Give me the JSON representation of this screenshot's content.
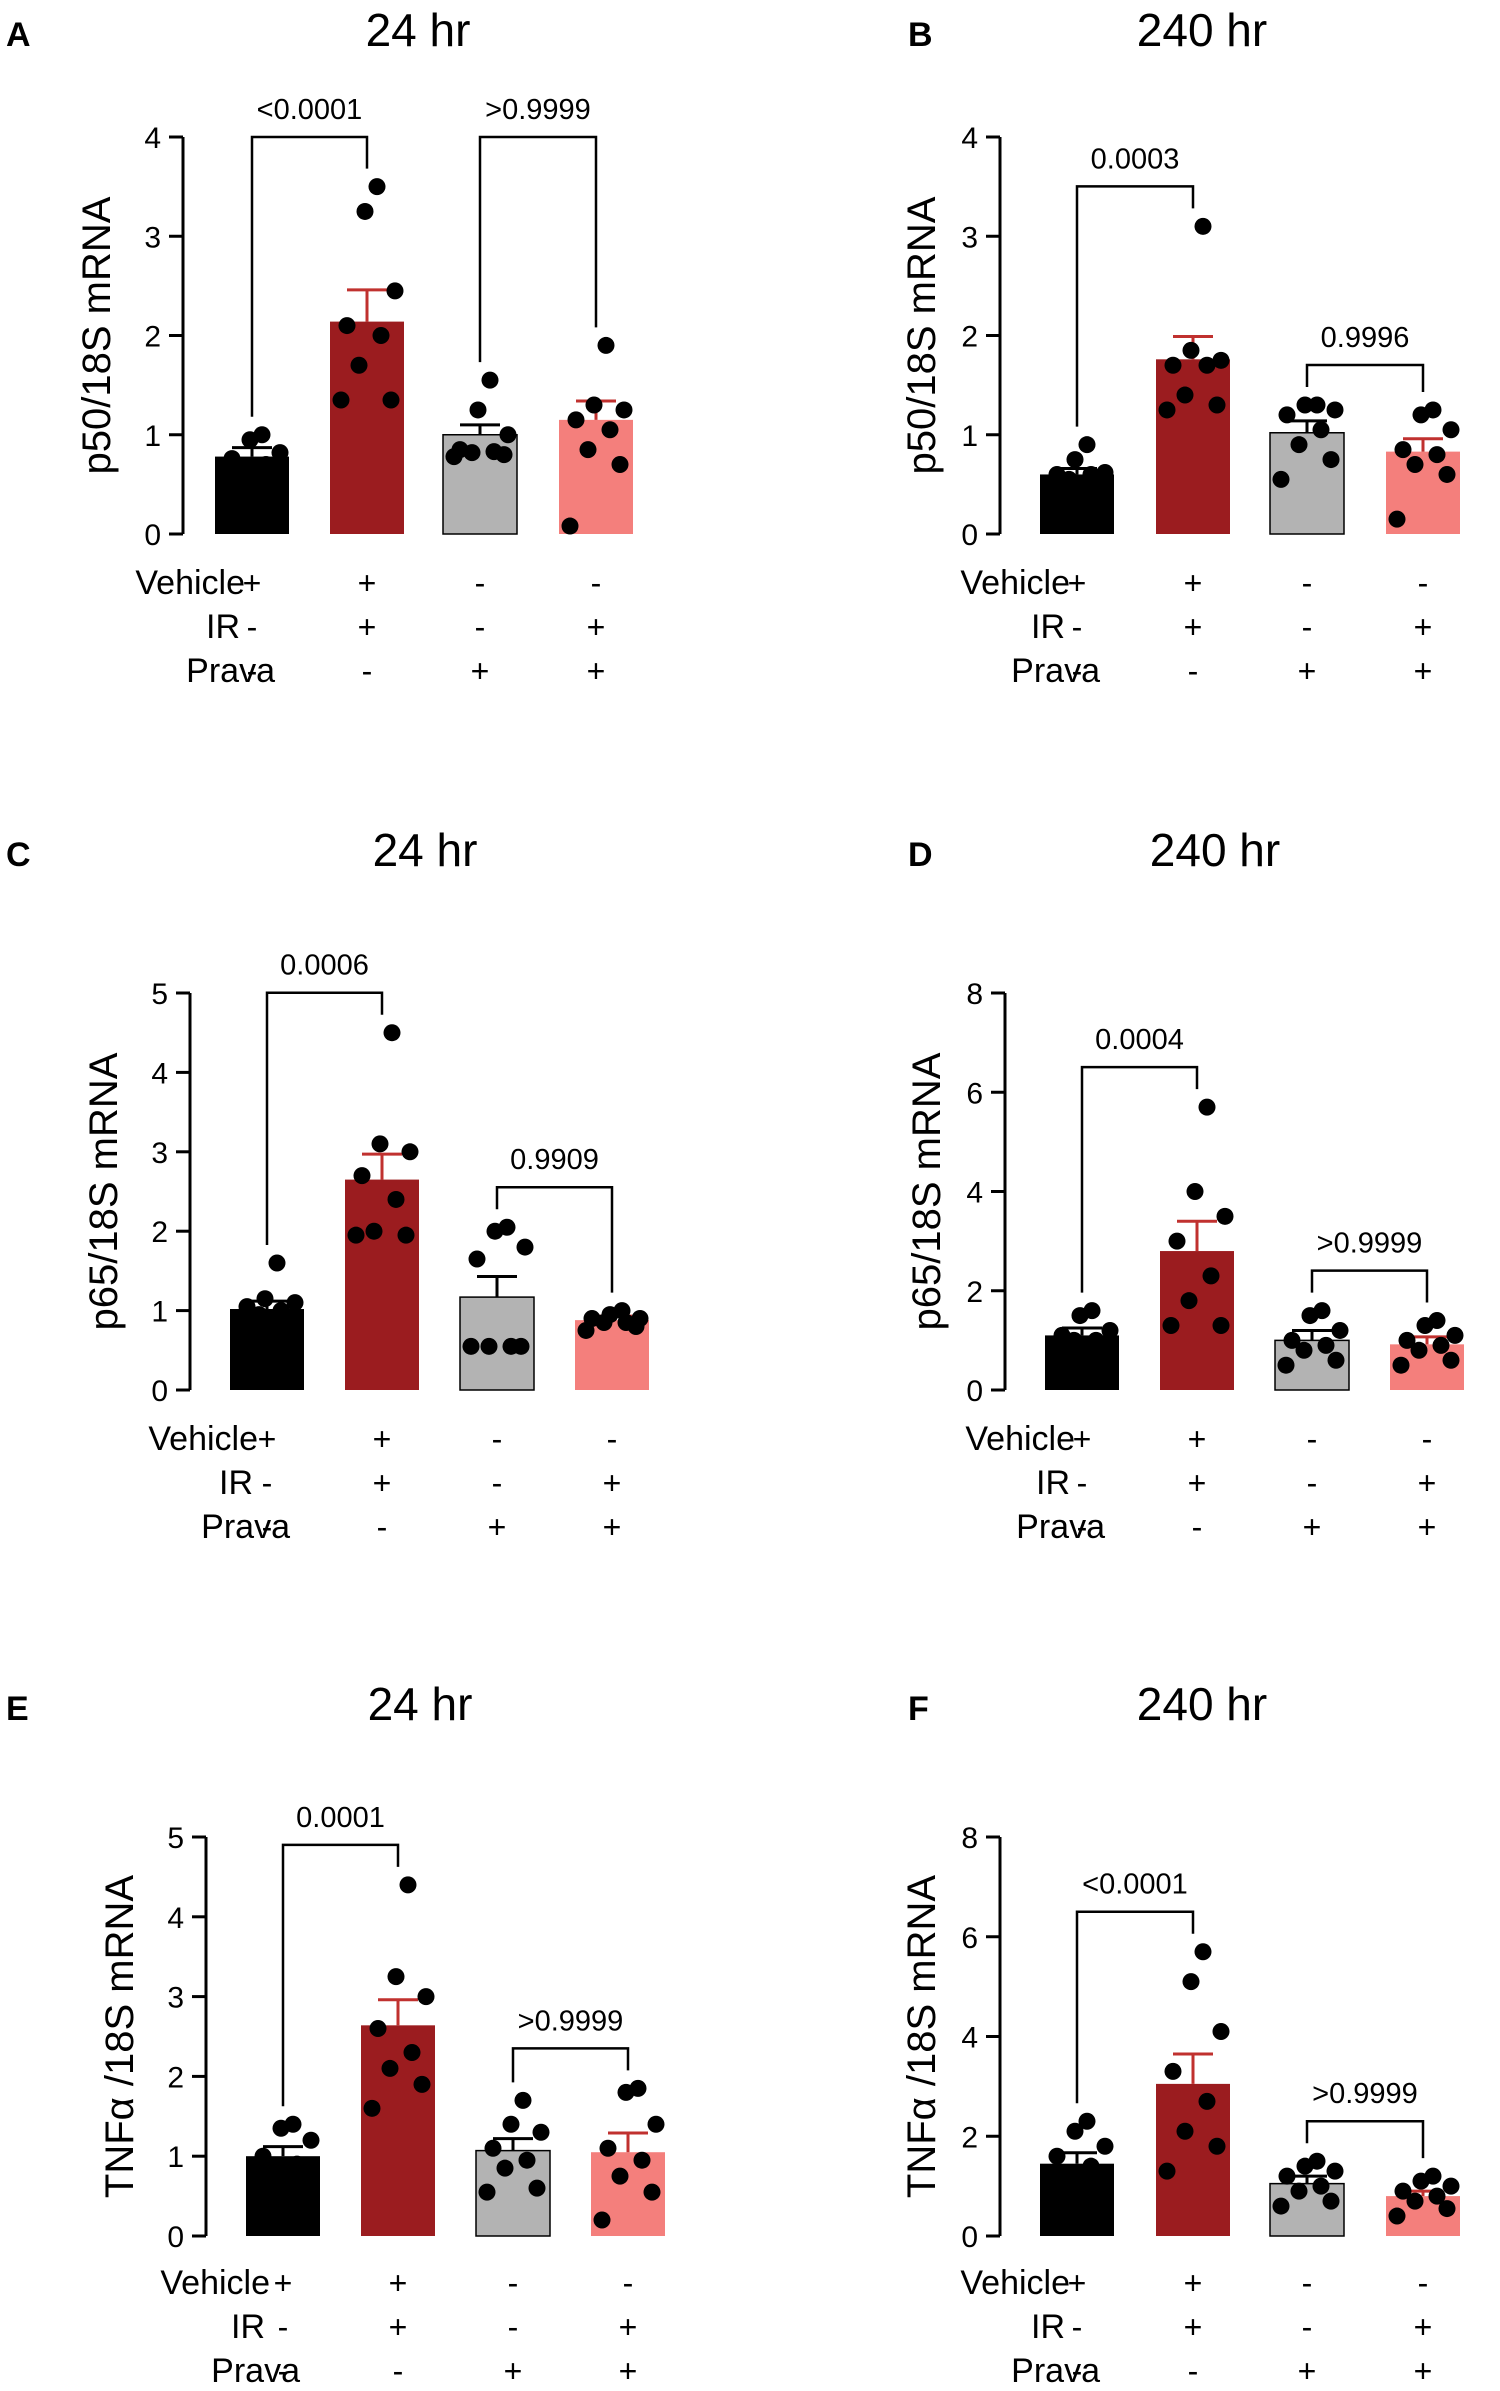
{
  "chart_data": [
    {
      "panel": "A",
      "type": "bar",
      "title": "24 hr",
      "ylabel": "p50/18S mRNA",
      "ylim": [
        0,
        4
      ],
      "yticks": [
        0,
        1,
        2,
        3,
        4
      ],
      "categories": [
        "Vehicle",
        "Vehicle+IR",
        "Prava",
        "Prava+IR"
      ],
      "values": [
        0.78,
        2.14,
        1.0,
        1.15
      ],
      "sem": [
        0.09,
        0.32,
        0.1,
        0.19
      ],
      "points": [
        [
          0.55,
          0.62,
          0.65,
          0.7,
          0.76,
          0.82,
          0.95,
          1.0
        ],
        [
          1.35,
          1.35,
          1.7,
          2.0,
          2.1,
          2.45,
          3.25,
          3.5
        ],
        [
          0.78,
          0.8,
          0.82,
          0.83,
          0.85,
          1.0,
          1.25,
          1.55
        ],
        [
          0.08,
          0.7,
          0.85,
          1.05,
          1.15,
          1.25,
          1.3,
          1.9
        ]
      ],
      "comparisons": [
        {
          "from": 0,
          "to": 1,
          "label": "<0.0001"
        },
        {
          "from": 2,
          "to": 3,
          "label": ">0.9999"
        }
      ],
      "conditions": [
        {
          "name": "Vehicle",
          "signs": [
            "+",
            "+",
            "-",
            "-"
          ]
        },
        {
          "name": "IR",
          "signs": [
            "-",
            "+",
            "-",
            "+"
          ]
        },
        {
          "name": "Prava",
          "signs": [
            "-",
            "-",
            "+",
            "+"
          ]
        }
      ]
    },
    {
      "panel": "B",
      "type": "bar",
      "title": "240 hr",
      "ylabel": "p50/18S mRNA",
      "ylim": [
        0,
        4
      ],
      "yticks": [
        0,
        1,
        2,
        3,
        4
      ],
      "categories": [
        "Vehicle",
        "Vehicle+IR",
        "Prava",
        "Prava+IR"
      ],
      "values": [
        0.6,
        1.76,
        1.02,
        0.83
      ],
      "sem": [
        0.06,
        0.23,
        0.12,
        0.13
      ],
      "points": [
        [
          0.5,
          0.55,
          0.55,
          0.6,
          0.6,
          0.62,
          0.75,
          0.9
        ],
        [
          1.25,
          1.3,
          1.4,
          1.7,
          1.7,
          1.75,
          1.85,
          3.1
        ],
        [
          0.55,
          0.75,
          0.9,
          1.05,
          1.2,
          1.25,
          1.3,
          1.3
        ],
        [
          0.15,
          0.6,
          0.7,
          0.8,
          0.85,
          1.05,
          1.2,
          1.25
        ]
      ],
      "comparisons": [
        {
          "from": 0,
          "to": 1,
          "label": "0.0003"
        },
        {
          "from": 2,
          "to": 3,
          "label": "0.9996"
        }
      ],
      "conditions": [
        {
          "name": "Vehicle",
          "signs": [
            "+",
            "+",
            "-",
            "-"
          ]
        },
        {
          "name": "IR",
          "signs": [
            "-",
            "+",
            "-",
            "+"
          ]
        },
        {
          "name": "Prava",
          "signs": [
            "-",
            "-",
            "+",
            "+"
          ]
        }
      ]
    },
    {
      "panel": "C",
      "type": "bar",
      "title": "24 hr",
      "ylabel": "p65/18S mRNA",
      "ylim": [
        0,
        5
      ],
      "yticks": [
        0,
        1,
        2,
        3,
        4,
        5
      ],
      "categories": [
        "Vehicle",
        "Vehicle+IR",
        "Prava",
        "Prava+IR"
      ],
      "values": [
        1.02,
        2.65,
        1.17,
        0.88
      ],
      "sem": [
        0.1,
        0.32,
        0.26,
        0.05
      ],
      "points": [
        [
          0.85,
          0.9,
          0.95,
          1.0,
          1.05,
          1.1,
          1.15,
          1.6
        ],
        [
          1.95,
          1.95,
          2.0,
          2.4,
          2.7,
          3.0,
          3.1,
          4.5
        ],
        [
          0.55,
          0.55,
          0.55,
          0.55,
          1.65,
          1.8,
          2.0,
          2.05
        ],
        [
          0.75,
          0.8,
          0.85,
          0.85,
          0.9,
          0.9,
          0.95,
          1.0
        ]
      ],
      "comparisons": [
        {
          "from": 0,
          "to": 1,
          "label": "0.0006"
        },
        {
          "from": 2,
          "to": 3,
          "label": "0.9909"
        }
      ],
      "conditions": [
        {
          "name": "Vehicle",
          "signs": [
            "+",
            "+",
            "-",
            "-"
          ]
        },
        {
          "name": "IR",
          "signs": [
            "-",
            "+",
            "-",
            "+"
          ]
        },
        {
          "name": "Prava",
          "signs": [
            "-",
            "-",
            "+",
            "+"
          ]
        }
      ]
    },
    {
      "panel": "D",
      "type": "bar",
      "title": "240 hr",
      "ylabel": "p65/18S mRNA",
      "ylim": [
        0,
        8
      ],
      "yticks": [
        0,
        2,
        4,
        6,
        8
      ],
      "categories": [
        "Vehicle",
        "Vehicle+IR",
        "Prava",
        "Prava+IR"
      ],
      "values": [
        1.1,
        2.8,
        1.0,
        0.92
      ],
      "sem": [
        0.15,
        0.6,
        0.2,
        0.15
      ],
      "points": [
        [
          0.8,
          0.9,
          1.0,
          1.0,
          1.1,
          1.2,
          1.5,
          1.6
        ],
        [
          1.3,
          1.3,
          1.8,
          2.3,
          3.0,
          3.5,
          4.0,
          5.7
        ],
        [
          0.5,
          0.6,
          0.8,
          0.9,
          1.0,
          1.2,
          1.5,
          1.6
        ],
        [
          0.5,
          0.6,
          0.8,
          0.9,
          1.0,
          1.1,
          1.3,
          1.4
        ]
      ],
      "comparisons": [
        {
          "from": 0,
          "to": 1,
          "label": "0.0004"
        },
        {
          "from": 2,
          "to": 3,
          "label": ">0.9999"
        }
      ],
      "conditions": [
        {
          "name": "Vehicle",
          "signs": [
            "+",
            "+",
            "-",
            "-"
          ]
        },
        {
          "name": "IR",
          "signs": [
            "-",
            "+",
            "-",
            "+"
          ]
        },
        {
          "name": "Prava",
          "signs": [
            "-",
            "-",
            "+",
            "+"
          ]
        }
      ]
    },
    {
      "panel": "E",
      "type": "bar",
      "title": "24 hr",
      "ylabel": "TNFα /18S mRNA",
      "ylim": [
        0,
        5
      ],
      "yticks": [
        0,
        1,
        2,
        3,
        4,
        5
      ],
      "categories": [
        "Vehicle",
        "Vehicle+IR",
        "Prava",
        "Prava+IR"
      ],
      "values": [
        1.0,
        2.64,
        1.07,
        1.05
      ],
      "sem": [
        0.12,
        0.32,
        0.15,
        0.24
      ],
      "points": [
        [
          0.6,
          0.7,
          0.8,
          0.9,
          1.0,
          1.2,
          1.35,
          1.4
        ],
        [
          1.6,
          1.9,
          2.1,
          2.3,
          2.6,
          3.0,
          3.25,
          4.4
        ],
        [
          0.55,
          0.6,
          0.85,
          0.95,
          1.1,
          1.3,
          1.4,
          1.7
        ],
        [
          0.2,
          0.55,
          0.75,
          0.95,
          1.1,
          1.4,
          1.8,
          1.85
        ]
      ],
      "comparisons": [
        {
          "from": 0,
          "to": 1,
          "label": "0.0001"
        },
        {
          "from": 2,
          "to": 3,
          "label": ">0.9999"
        }
      ],
      "conditions": [
        {
          "name": "Vehicle",
          "signs": [
            "+",
            "+",
            "-",
            "-"
          ]
        },
        {
          "name": "IR",
          "signs": [
            "-",
            "+",
            "-",
            "+"
          ]
        },
        {
          "name": "Prava",
          "signs": [
            "-",
            "-",
            "+",
            "+"
          ]
        }
      ]
    },
    {
      "panel": "F",
      "type": "bar",
      "title": "240 hr",
      "ylabel": "TNFα /18S mRNA",
      "ylim": [
        0,
        8
      ],
      "yticks": [
        0,
        2,
        4,
        6,
        8
      ],
      "categories": [
        "Vehicle",
        "Vehicle+IR",
        "Prava",
        "Prava+IR"
      ],
      "values": [
        1.45,
        3.05,
        1.05,
        0.8
      ],
      "sem": [
        0.22,
        0.6,
        0.15,
        0.1
      ],
      "points": [
        [
          0.8,
          1.0,
          1.2,
          1.4,
          1.6,
          1.8,
          2.1,
          2.3
        ],
        [
          1.3,
          1.8,
          2.1,
          2.7,
          3.3,
          4.1,
          5.1,
          5.7
        ],
        [
          0.6,
          0.7,
          0.9,
          1.0,
          1.2,
          1.3,
          1.4,
          1.5
        ],
        [
          0.4,
          0.55,
          0.7,
          0.8,
          0.9,
          1.0,
          1.1,
          1.2
        ]
      ],
      "comparisons": [
        {
          "from": 0,
          "to": 1,
          "label": "<0.0001"
        },
        {
          "from": 2,
          "to": 3,
          "label": ">0.9999"
        }
      ],
      "conditions": [
        {
          "name": "Vehicle",
          "signs": [
            "+",
            "+",
            "-",
            "-"
          ]
        },
        {
          "name": "IR",
          "signs": [
            "-",
            "+",
            "-",
            "+"
          ]
        },
        {
          "name": "Prava",
          "signs": [
            "-",
            "-",
            "+",
            "+"
          ]
        }
      ]
    }
  ],
  "colors": {
    "bars": [
      "#000000",
      "#9b1c1f",
      "#b3b3b3",
      "#f47f7c"
    ],
    "error_bars": [
      "#000000",
      "#c0312f",
      "#000000",
      "#c0312f"
    ],
    "points": "#000000",
    "axis": "#000000"
  }
}
